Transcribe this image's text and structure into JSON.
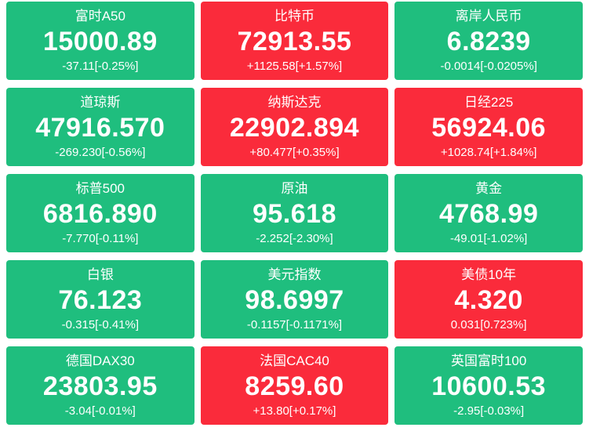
{
  "colors": {
    "up_background": "#fa2b3b",
    "down_background": "#1fbe7e",
    "text": "#ffffff",
    "page_background": "#ffffff"
  },
  "tiles": [
    {
      "name": "富时A50",
      "value": "15000.89",
      "change": "-37.11[-0.25%]",
      "direction": "down"
    },
    {
      "name": "比特币",
      "value": "72913.55",
      "change": "+1125.58[+1.57%]",
      "direction": "up"
    },
    {
      "name": "离岸人民币",
      "value": "6.8239",
      "change": "-0.0014[-0.0205%]",
      "direction": "down"
    },
    {
      "name": "道琼斯",
      "value": "47916.570",
      "change": "-269.230[-0.56%]",
      "direction": "down"
    },
    {
      "name": "纳斯达克",
      "value": "22902.894",
      "change": "+80.477[+0.35%]",
      "direction": "up"
    },
    {
      "name": "日经225",
      "value": "56924.06",
      "change": "+1028.74[+1.84%]",
      "direction": "up"
    },
    {
      "name": "标普500",
      "value": "6816.890",
      "change": "-7.770[-0.11%]",
      "direction": "down"
    },
    {
      "name": "原油",
      "value": "95.618",
      "change": "-2.252[-2.30%]",
      "direction": "down"
    },
    {
      "name": "黄金",
      "value": "4768.99",
      "change": "-49.01[-1.02%]",
      "direction": "down"
    },
    {
      "name": "白银",
      "value": "76.123",
      "change": "-0.315[-0.41%]",
      "direction": "down"
    },
    {
      "name": "美元指数",
      "value": "98.6997",
      "change": "-0.1157[-0.1171%]",
      "direction": "down"
    },
    {
      "name": "美债10年",
      "value": "4.320",
      "change": "0.031[0.723%]",
      "direction": "up"
    },
    {
      "name": "德国DAX30",
      "value": "23803.95",
      "change": "-3.04[-0.01%]",
      "direction": "down"
    },
    {
      "name": "法国CAC40",
      "value": "8259.60",
      "change": "+13.80[+0.17%]",
      "direction": "up"
    },
    {
      "name": "英国富时100",
      "value": "10600.53",
      "change": "-2.95[-0.03%]",
      "direction": "down"
    }
  ]
}
